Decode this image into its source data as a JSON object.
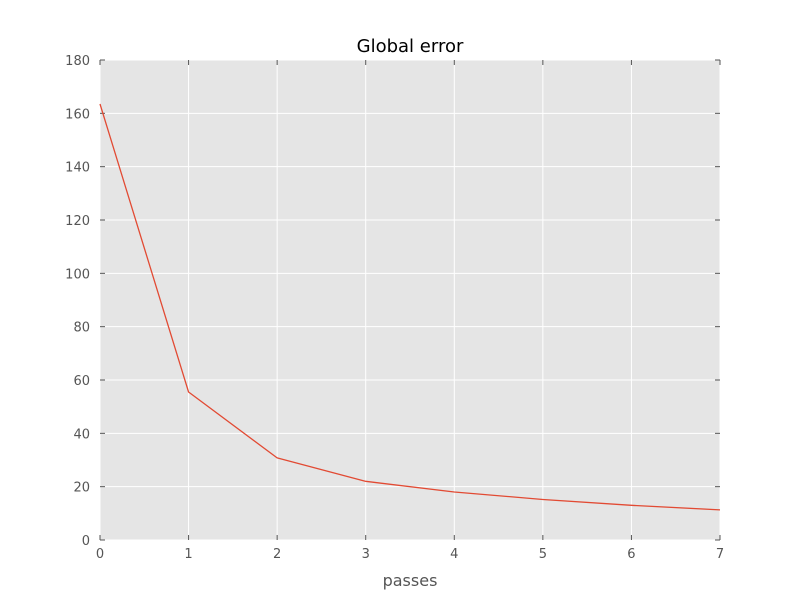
{
  "chart_data": {
    "type": "line",
    "title": "Global error",
    "xlabel": "passes",
    "ylabel": "",
    "x": [
      0,
      1,
      2,
      3,
      4,
      5,
      6,
      7
    ],
    "series": [
      {
        "values": [
          163.5,
          55.5,
          30.8,
          22.0,
          18.0,
          15.2,
          13.0,
          11.3
        ],
        "color": "#e24a33"
      }
    ],
    "xlim": [
      0,
      7
    ],
    "ylim": [
      0,
      180
    ],
    "xticks": [
      0,
      1,
      2,
      3,
      4,
      5,
      6,
      7
    ],
    "yticks": [
      0,
      20,
      40,
      60,
      80,
      100,
      120,
      140,
      160,
      180
    ],
    "grid": true,
    "legend": "none",
    "colors": {
      "plot_background": "#e5e5e5",
      "grid": "#ffffff",
      "tick_text": "#555555",
      "title_text": "#000000"
    }
  }
}
